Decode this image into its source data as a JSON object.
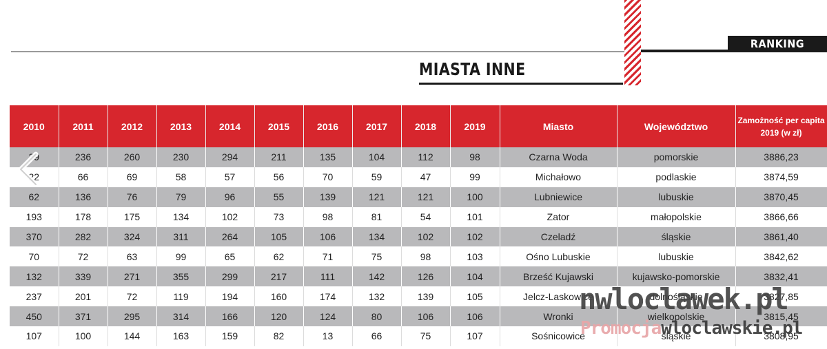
{
  "header": {
    "badge": "RANKING",
    "title": "MIASTA INNE"
  },
  "colors": {
    "accent": "#d7262d",
    "row_gray": "#b9b9bb",
    "dark": "#1a1a1a"
  },
  "table": {
    "headers": [
      "2010",
      "2011",
      "2012",
      "2013",
      "2014",
      "2015",
      "2016",
      "2017",
      "2018",
      "2019",
      "Miasto",
      "Województwo",
      "Zamożność per capita 2019 (w zł)"
    ],
    "rows": [
      [
        "39",
        "236",
        "260",
        "230",
        "294",
        "211",
        "135",
        "104",
        "112",
        "98",
        "Czarna Woda",
        "pomorskie",
        "3886,23"
      ],
      [
        "22",
        "66",
        "69",
        "58",
        "57",
        "56",
        "70",
        "59",
        "47",
        "99",
        "Michałowo",
        "podlaskie",
        "3874,59"
      ],
      [
        "62",
        "136",
        "76",
        "79",
        "96",
        "55",
        "139",
        "121",
        "121",
        "100",
        "Lubniewice",
        "lubuskie",
        "3870,45"
      ],
      [
        "193",
        "178",
        "175",
        "134",
        "102",
        "73",
        "98",
        "81",
        "54",
        "101",
        "Zator",
        "małopolskie",
        "3866,66"
      ],
      [
        "370",
        "282",
        "324",
        "311",
        "264",
        "105",
        "106",
        "134",
        "102",
        "102",
        "Czeladź",
        "śląskie",
        "3861,40"
      ],
      [
        "70",
        "72",
        "63",
        "99",
        "65",
        "62",
        "71",
        "75",
        "98",
        "103",
        "Ośno Lubuskie",
        "lubuskie",
        "3842,62"
      ],
      [
        "132",
        "339",
        "271",
        "355",
        "299",
        "217",
        "111",
        "142",
        "126",
        "104",
        "Brześć Kujawski",
        "kujawsko-pomorskie",
        "3832,41"
      ],
      [
        "237",
        "201",
        "72",
        "119",
        "194",
        "160",
        "174",
        "132",
        "139",
        "105",
        "Jelcz-Laskowice",
        "dolnośląskie",
        "3827,85"
      ],
      [
        "450",
        "371",
        "295",
        "314",
        "166",
        "120",
        "124",
        "80",
        "106",
        "106",
        "Wronki",
        "wielkopolskie",
        "3815,45"
      ],
      [
        "107",
        "100",
        "144",
        "163",
        "159",
        "82",
        "13",
        "66",
        "75",
        "107",
        "Sośnicowice",
        "śląskie",
        "3808,95"
      ]
    ]
  },
  "watermark": {
    "line1": "nwloclawek.pl",
    "line2_a": "Promocja",
    "line2_b": "wloclawskie.pl"
  },
  "nav": {
    "prev_icon": "chevron-left-icon"
  }
}
